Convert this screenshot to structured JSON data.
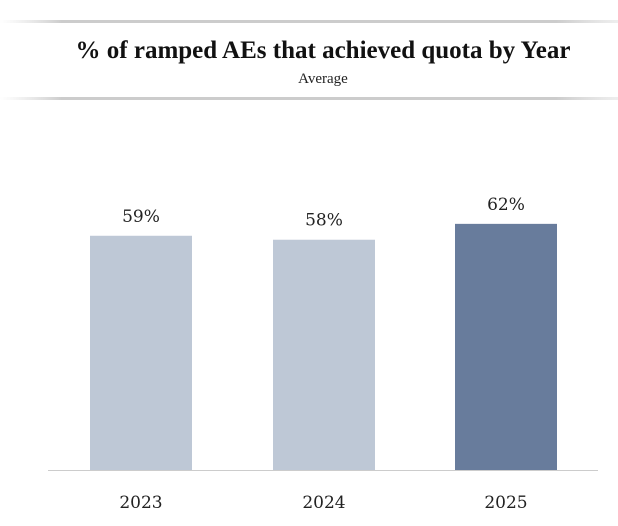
{
  "chart_data": {
    "type": "bar",
    "title": "% of ramped AEs that achieved quota by Year",
    "subtitle": "Average",
    "categories": [
      "2023",
      "2024",
      "2025"
    ],
    "values": [
      59,
      58,
      62
    ],
    "value_labels": [
      "59%",
      "58%",
      "62%"
    ],
    "colors": [
      "#bec8d6",
      "#bec8d6",
      "#687c9c"
    ]
  }
}
